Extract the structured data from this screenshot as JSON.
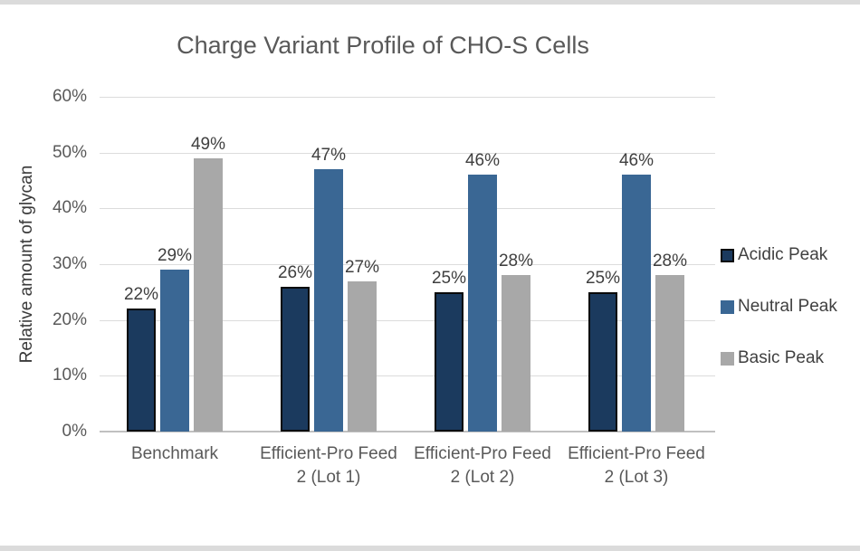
{
  "frame": {
    "border_color": "#dbdbdb"
  },
  "colors": {
    "gridline": "#dcdcdc",
    "axis_line": "#c0c0c0",
    "title_text": "#595959",
    "tick_text": "#595959",
    "data_label_text": "#3f3f3f",
    "acidic": "#1b3a5e",
    "acidic_border": "#0a0a0a",
    "neutral": "#3a6794",
    "basic": "#a8a8a8"
  },
  "chart_data": {
    "type": "bar",
    "title": "Charge Variant Profile of CHO-S Cells",
    "xlabel": "",
    "ylabel": "Relative amount of glycan",
    "categories": [
      "Benchmark",
      "Efficient-Pro Feed 2 (Lot 1)",
      "Efficient-Pro Feed 2 (Lot 2)",
      "Efficient-Pro Feed 2 (Lot 3)"
    ],
    "series": [
      {
        "name": "Acidic Peak",
        "color": "#1b3a5e",
        "border": "#0a0a0a",
        "values": [
          22,
          26,
          25,
          25
        ]
      },
      {
        "name": "Neutral Peak",
        "color": "#3a6794",
        "values": [
          29,
          47,
          46,
          46
        ]
      },
      {
        "name": "Basic Peak",
        "color": "#a8a8a8",
        "values": [
          49,
          27,
          28,
          28
        ]
      }
    ],
    "data_labels": [
      [
        "22%",
        "26%",
        "25%",
        "25%"
      ],
      [
        "29%",
        "47%",
        "46%",
        "46%"
      ],
      [
        "49%",
        "27%",
        "28%",
        "28%"
      ]
    ],
    "data_label_suffix": "%",
    "ylim": [
      0,
      60
    ],
    "ytick_step": 10,
    "ytick_labels": [
      "0%",
      "10%",
      "20%",
      "30%",
      "40%",
      "50%",
      "60%"
    ],
    "grid": true,
    "legend_position": "right"
  }
}
